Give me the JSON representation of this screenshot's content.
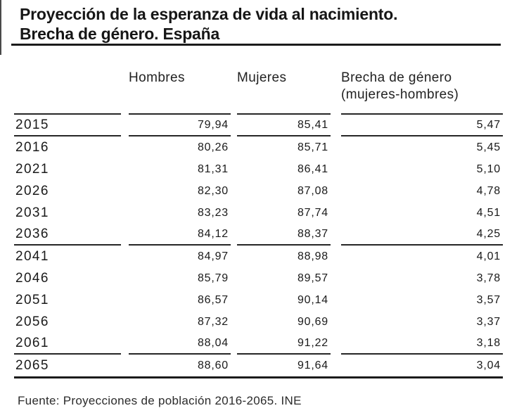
{
  "title": {
    "line1": "Proyección de la esperanza de vida al nacimiento.",
    "line2": "Brecha de género. España"
  },
  "table": {
    "columns": {
      "year": "",
      "hombres": "Hombres",
      "mujeres": "Mujeres",
      "brecha_line1": "Brecha de género",
      "brecha_line2": "(mujeres-hombres)"
    },
    "rows": [
      {
        "year": "2015",
        "hombres": "79,94",
        "mujeres": "85,41",
        "brecha": "5,47"
      },
      {
        "year": "2016",
        "hombres": "80,26",
        "mujeres": "85,71",
        "brecha": "5,45"
      },
      {
        "year": "2021",
        "hombres": "81,31",
        "mujeres": "86,41",
        "brecha": "5,10"
      },
      {
        "year": "2026",
        "hombres": "82,30",
        "mujeres": "87,08",
        "brecha": "4,78"
      },
      {
        "year": "2031",
        "hombres": "83,23",
        "mujeres": "87,74",
        "brecha": "4,51"
      },
      {
        "year": "2036",
        "hombres": "84,12",
        "mujeres": "88,37",
        "brecha": "4,25"
      },
      {
        "year": "2041",
        "hombres": "84,97",
        "mujeres": "88,98",
        "brecha": "4,01"
      },
      {
        "year": "2046",
        "hombres": "85,79",
        "mujeres": "89,57",
        "brecha": "3,78"
      },
      {
        "year": "2051",
        "hombres": "86,57",
        "mujeres": "90,14",
        "brecha": "3,57"
      },
      {
        "year": "2056",
        "hombres": "87,32",
        "mujeres": "90,69",
        "brecha": "3,37"
      },
      {
        "year": "2061",
        "hombres": "88,04",
        "mujeres": "91,22",
        "brecha": "3,18"
      },
      {
        "year": "2065",
        "hombres": "88,60",
        "mujeres": "91,64",
        "brecha": "3,04"
      }
    ]
  },
  "footer": {
    "source": "Fuente: Proyecciones de población 2016-2065. INE"
  },
  "colors": {
    "text": "#1a1a1a",
    "rule": "#262626",
    "background": "#ffffff"
  },
  "chart_data": {
    "type": "table",
    "title": "Proyección de la esperanza de vida al nacimiento. Brecha de género. España",
    "categories": [
      "2015",
      "2016",
      "2021",
      "2026",
      "2031",
      "2036",
      "2041",
      "2046",
      "2051",
      "2056",
      "2061",
      "2065"
    ],
    "series": [
      {
        "name": "Hombres",
        "values": [
          79.94,
          80.26,
          81.31,
          82.3,
          83.23,
          84.12,
          84.97,
          85.79,
          86.57,
          87.32,
          88.04,
          88.6
        ]
      },
      {
        "name": "Mujeres",
        "values": [
          85.41,
          85.71,
          86.41,
          87.08,
          87.74,
          88.37,
          88.98,
          89.57,
          90.14,
          90.69,
          91.22,
          91.64
        ]
      },
      {
        "name": "Brecha de género (mujeres-hombres)",
        "values": [
          5.47,
          5.45,
          5.1,
          4.78,
          4.51,
          4.25,
          4.01,
          3.78,
          3.57,
          3.37,
          3.18,
          3.04
        ]
      }
    ],
    "source": "Fuente: Proyecciones de población 2016-2065. INE"
  }
}
